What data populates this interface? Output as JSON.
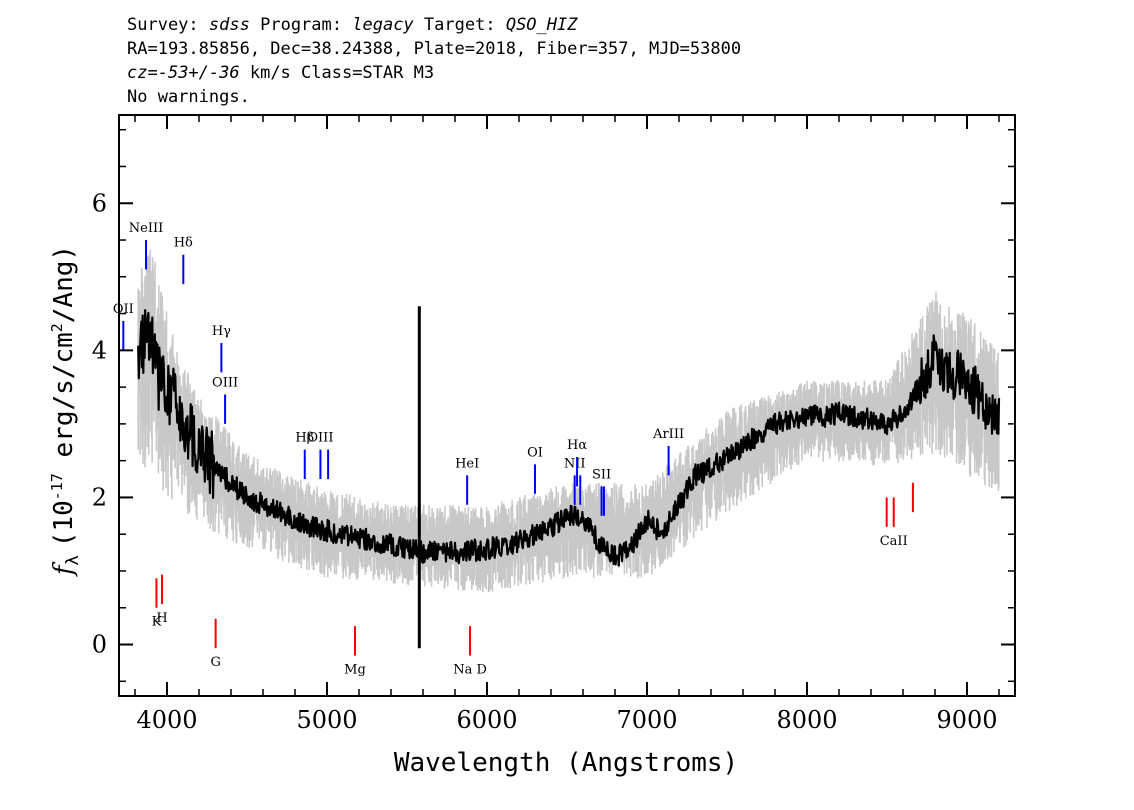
{
  "header": {
    "survey_label": "Survey:",
    "survey": "sdss",
    "program_label": "Program:",
    "program": "legacy",
    "target_label": "Target:",
    "target": "QSO_HIZ",
    "line2": "RA=193.85856, Dec=38.24388, Plate=2018, Fiber=357, MJD=53800",
    "cz_label": "cz=",
    "cz_value": "-53+/-36",
    "cz_rest": " km/s Class=STAR M3",
    "warnings": "No warnings."
  },
  "chart_data": {
    "type": "line",
    "xlabel": "Wavelength (Angstroms)",
    "ylabel_prefix": "f",
    "ylabel_sub": "λ",
    "ylabel_main": "(10",
    "ylabel_exp1": "-17",
    "ylabel_mid": " erg/s/cm",
    "ylabel_exp2": "2",
    "ylabel_end": "/Ang)",
    "xlim": [
      3700,
      9300
    ],
    "ylim": [
      -0.7,
      7.2
    ],
    "x_ticks": [
      4000,
      5000,
      6000,
      7000,
      8000,
      9000
    ],
    "y_ticks": [
      0,
      2,
      4,
      6
    ],
    "x_tick_labels": [
      "4000",
      "5000",
      "6000",
      "7000",
      "8000",
      "9000"
    ],
    "y_tick_labels": [
      "0",
      "2",
      "4",
      "6"
    ],
    "series": [
      {
        "role": "smoothed flux",
        "color": "#000000",
        "x": [
          3820,
          3850,
          3880,
          3910,
          3950,
          4000,
          4050,
          4100,
          4150,
          4200,
          4300,
          4400,
          4500,
          4600,
          4700,
          4800,
          4900,
          5000,
          5200,
          5400,
          5600,
          5800,
          6000,
          6200,
          6400,
          6500,
          6600,
          6700,
          6800,
          6900,
          7000,
          7100,
          7200,
          7300,
          7400,
          7500,
          7600,
          7700,
          7800,
          7900,
          8000,
          8100,
          8200,
          8300,
          8400,
          8500,
          8600,
          8700,
          8800,
          8900,
          9000,
          9100,
          9200
        ],
        "y": [
          3.8,
          4.1,
          4.3,
          4.0,
          3.6,
          3.5,
          3.3,
          3.0,
          2.9,
          2.7,
          2.4,
          2.2,
          2.0,
          1.9,
          1.8,
          1.7,
          1.6,
          1.55,
          1.45,
          1.35,
          1.25,
          1.25,
          1.3,
          1.4,
          1.6,
          1.75,
          1.7,
          1.4,
          1.2,
          1.3,
          1.7,
          1.5,
          1.9,
          2.3,
          2.4,
          2.55,
          2.7,
          2.85,
          3.0,
          3.05,
          3.1,
          3.1,
          3.15,
          3.1,
          3.05,
          3.0,
          3.15,
          3.5,
          3.9,
          3.7,
          3.6,
          3.3,
          3.1
        ]
      },
      {
        "role": "noise envelope",
        "color": "#c8c8c8",
        "x": [
          3820,
          3900,
          4000,
          4200,
          4500,
          5000,
          5500,
          6000,
          6500,
          7000,
          7500,
          8000,
          8500,
          8800,
          9000,
          9200
        ],
        "y_upper": [
          5.0,
          5.5,
          4.5,
          3.4,
          2.6,
          2.1,
          1.9,
          1.9,
          2.2,
          2.2,
          3.2,
          3.6,
          3.6,
          4.8,
          4.5,
          4.0
        ],
        "y_lower": [
          2.5,
          2.3,
          2.0,
          1.6,
          1.3,
          0.9,
          0.8,
          0.7,
          0.9,
          0.9,
          1.8,
          2.5,
          2.4,
          2.6,
          2.3,
          2.0
        ]
      }
    ],
    "emission_lines": [
      {
        "label": "OII",
        "wave": 3727,
        "y0": 4.0,
        "y1": 4.4
      },
      {
        "label": "NeIII",
        "wave": 3869,
        "y0": 5.1,
        "y1": 5.5
      },
      {
        "label": "Hδ",
        "wave": 4102,
        "y0": 4.9,
        "y1": 5.3
      },
      {
        "label": "Hγ",
        "wave": 4340,
        "y0": 3.7,
        "y1": 4.1
      },
      {
        "label": "OIII",
        "wave": 4363,
        "y0": 3.0,
        "y1": 3.4
      },
      {
        "label": "Hβ",
        "wave": 4861,
        "y0": 2.25,
        "y1": 2.65
      },
      {
        "label": "OIII",
        "wave": 4959,
        "y0": 2.25,
        "y1": 2.65
      },
      {
        "label": "OIII",
        "wave": 5007,
        "y0": 2.25,
        "y1": 2.65,
        "no_text": true
      },
      {
        "label": "HeI",
        "wave": 5876,
        "y0": 1.9,
        "y1": 2.3
      },
      {
        "label": "OI",
        "wave": 6300,
        "y0": 2.05,
        "y1": 2.45
      },
      {
        "label": "NII",
        "wave": 6548,
        "y0": 1.9,
        "y1": 2.3
      },
      {
        "label": "Hα",
        "wave": 6563,
        "y0": 2.15,
        "y1": 2.55
      },
      {
        "label": "NII",
        "wave": 6583,
        "y0": 1.9,
        "y1": 2.3,
        "no_text": true
      },
      {
        "label": "SII",
        "wave": 6716,
        "y0": 1.75,
        "y1": 2.15
      },
      {
        "label": "SII",
        "wave": 6731,
        "y0": 1.75,
        "y1": 2.15,
        "no_text": true
      },
      {
        "label": "ArIII",
        "wave": 7135,
        "y0": 2.3,
        "y1": 2.7
      }
    ],
    "absorption_lines": [
      {
        "label": "K",
        "wave": 3934,
        "y0": 0.5,
        "y1": 0.9
      },
      {
        "label": "H",
        "wave": 3969,
        "y0": 0.55,
        "y1": 0.95
      },
      {
        "label": "G",
        "wave": 4304,
        "y0": -0.05,
        "y1": 0.35
      },
      {
        "label": "Mg",
        "wave": 5175,
        "y0": -0.15,
        "y1": 0.25
      },
      {
        "label": "Na D",
        "wave": 5894,
        "y0": -0.15,
        "y1": 0.25
      },
      {
        "label": "CaII",
        "wave": 8498,
        "y0": 1.6,
        "y1": 2.0,
        "no_text": true
      },
      {
        "label": "CaII",
        "wave": 8542,
        "y0": 1.6,
        "y1": 2.0
      },
      {
        "label": "CaII",
        "wave": 8662,
        "y0": 1.8,
        "y1": 2.2,
        "no_text": true
      }
    ],
    "emission_color": "#0000ff",
    "absorption_color": "#ff0000",
    "sky_line_color": "#000000"
  }
}
